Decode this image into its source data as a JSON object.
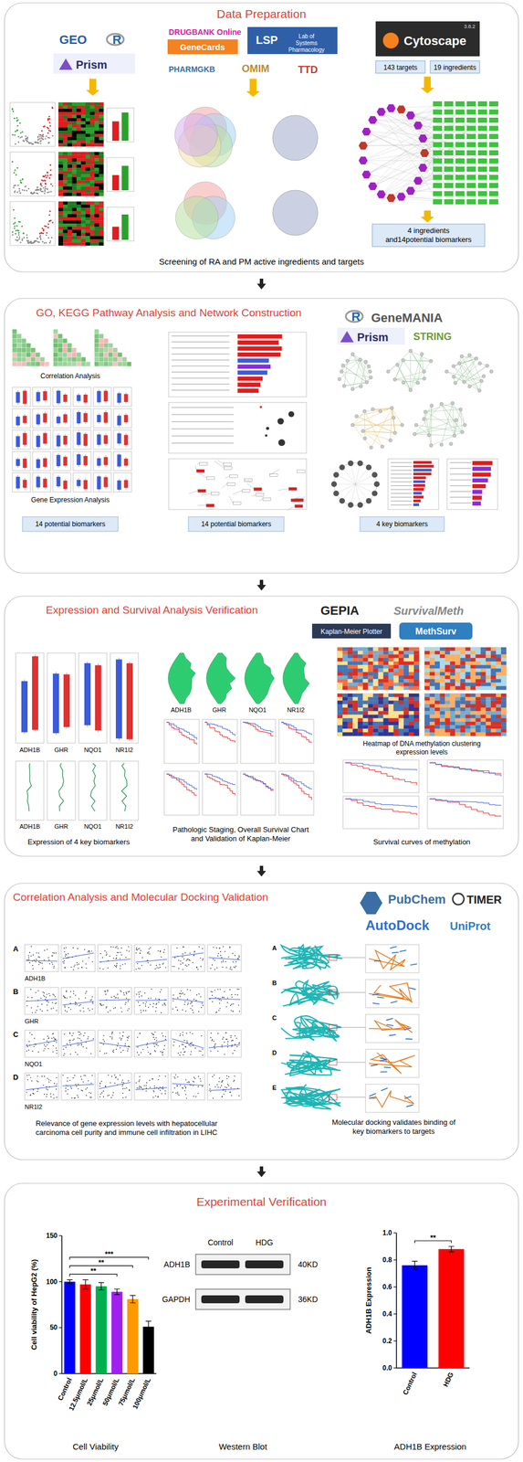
{
  "panels": {
    "data_preparation": {
      "title": "Data Preparation",
      "logos": [
        "GEO",
        "R",
        "Prism",
        "DRUGBANK Online",
        "GeneCards",
        "LSP",
        "Lab of Systems Pharmacology",
        "PHARMGKB",
        "OMIM",
        "TTD",
        "Cytoscape",
        "3.8.2"
      ],
      "boxes": [
        "143 targets",
        "19 ingredients",
        "4 ingredients and14potential biomarkers"
      ],
      "caption": "Screening of RA and PM active ingredients and targets"
    },
    "go_kegg": {
      "title": "GO, KEGG Pathway Analysis and Network Construction",
      "logos": [
        "R",
        "GeneMANIA",
        "Prism",
        "STRING"
      ],
      "labels": [
        "Correlation Analysis",
        "Gene Expression Analysis"
      ],
      "boxes": [
        "14 potential biomarkers",
        "14 potential biomarkers",
        "4 key biomarkers"
      ]
    },
    "expression_survival": {
      "title": "Expression and Survival Analysis Verification",
      "logos": [
        "GEPIA",
        "SurvivalMeth",
        "Kaplan-Meier Plotter",
        "MethSurv"
      ],
      "genes": [
        "ADH1B",
        "GHR",
        "NQO1",
        "NR1I2"
      ],
      "captions": [
        "Expression of 4 key biomarkers",
        "Pathologic Staging, Overall Survival Chart and Validation of Kaplan-Meier",
        "Heatmap of DNA methylation clustering expression levels",
        "Survival curves of methylation"
      ]
    },
    "correlation_docking": {
      "title": "Correlation Analysis and Molecular Docking Validation",
      "logos": [
        "PubChem",
        "TIMER",
        "AutoDock",
        "UniProt"
      ],
      "rows": [
        {
          "letter": "A",
          "gene": "ADH1B"
        },
        {
          "letter": "B",
          "gene": "GHR"
        },
        {
          "letter": "C",
          "gene": "NQO1"
        },
        {
          "letter": "D",
          "gene": "NR1I2"
        }
      ],
      "docking_letters": [
        "A",
        "B",
        "C",
        "D",
        "E"
      ],
      "captions": [
        "Relevance of gene expression levels with hepatocellular carcinoma cell purity and immune cell infiltration in LIHC",
        "Molecular docking validates binding of key biomarkers to targets"
      ]
    },
    "experimental": {
      "title": "Experimental Verification",
      "captions": [
        "Cell Viability",
        "Western Blot",
        "ADH1B Expression"
      ],
      "western_blot": {
        "lanes": [
          "Control",
          "HDG"
        ],
        "bands": [
          {
            "name": "ADH1B",
            "size": "40KD"
          },
          {
            "name": "GAPDH",
            "size": "36KD"
          }
        ]
      }
    }
  },
  "chart_data": [
    {
      "type": "bar",
      "y_label": "Cell viability of HepG2 (%)",
      "categories": [
        "Control",
        "12.5μmol/L",
        "25μmol/L",
        "50μmol/L",
        "75μmol/L",
        "100μmol/L"
      ],
      "values": [
        100,
        97,
        95,
        89,
        81,
        51
      ],
      "errors": [
        2,
        5,
        4,
        3,
        4,
        6
      ],
      "colors": [
        "#0000ff",
        "#ff0000",
        "#00b050",
        "#a020f0",
        "#ff9900",
        "#000000"
      ],
      "ylim": [
        0,
        150
      ],
      "yticks": [
        0,
        50,
        100,
        150
      ],
      "significance": [
        {
          "from": 0,
          "to": 3,
          "label": "**"
        },
        {
          "from": 0,
          "to": 4,
          "label": "**"
        },
        {
          "from": 0,
          "to": 5,
          "label": "***"
        }
      ]
    },
    {
      "type": "bar",
      "y_label": "ADH1B Expression",
      "categories": [
        "Control",
        "HDG"
      ],
      "values": [
        0.76,
        0.88
      ],
      "errors": [
        0.03,
        0.02
      ],
      "colors": [
        "#0000ff",
        "#ff0000"
      ],
      "ylim": [
        0,
        1.0
      ],
      "yticks": [
        {
          "value": 0,
          "label": "0.0"
        },
        {
          "value": 0.2,
          "label": "0.2"
        },
        {
          "value": 0.4,
          "label": "0.4"
        },
        {
          "value": 0.6,
          "label": "0.6"
        },
        {
          "value": 0.8,
          "label": "0.8"
        },
        {
          "value": 1.0,
          "label": "1.0"
        }
      ],
      "significance": [
        {
          "from": 0,
          "to": 1,
          "label": "**"
        }
      ]
    }
  ]
}
